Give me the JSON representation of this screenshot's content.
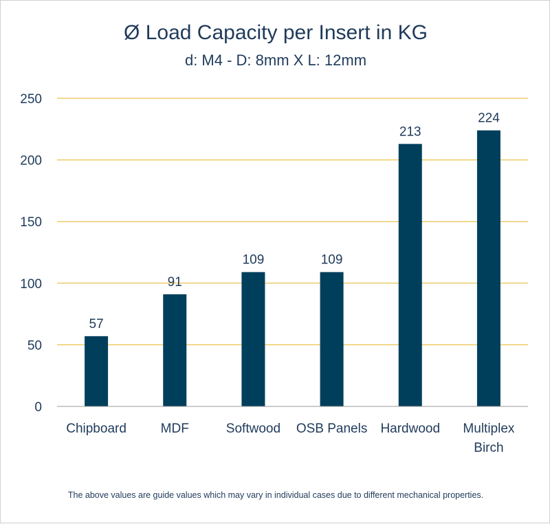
{
  "chart_data": {
    "type": "bar",
    "title": "Ø Load Capacity per Insert in KG",
    "subtitle": "d: M4 - D: 8mm X L: 12mm",
    "categories": [
      [
        "Chipboard"
      ],
      [
        "MDF"
      ],
      [
        "Softwood"
      ],
      [
        "OSB Panels"
      ],
      [
        "Hardwood"
      ],
      [
        "Multiplex",
        "Birch"
      ]
    ],
    "values": [
      57,
      91,
      109,
      109,
      213,
      224
    ],
    "data_labels": [
      "57",
      "91",
      "109",
      "109",
      "213",
      "224"
    ],
    "ylim": [
      0,
      250
    ],
    "yticks": [
      0,
      50,
      100,
      150,
      200,
      250
    ],
    "grid": true,
    "legend": "none",
    "colors": {
      "bar": "#003f5c",
      "grid": "#e6b422",
      "text": "#1f3a5a",
      "axis": "#9a9a9a"
    }
  },
  "footnote": "The above values are guide values which may vary in individual cases due to different mechanical properties."
}
